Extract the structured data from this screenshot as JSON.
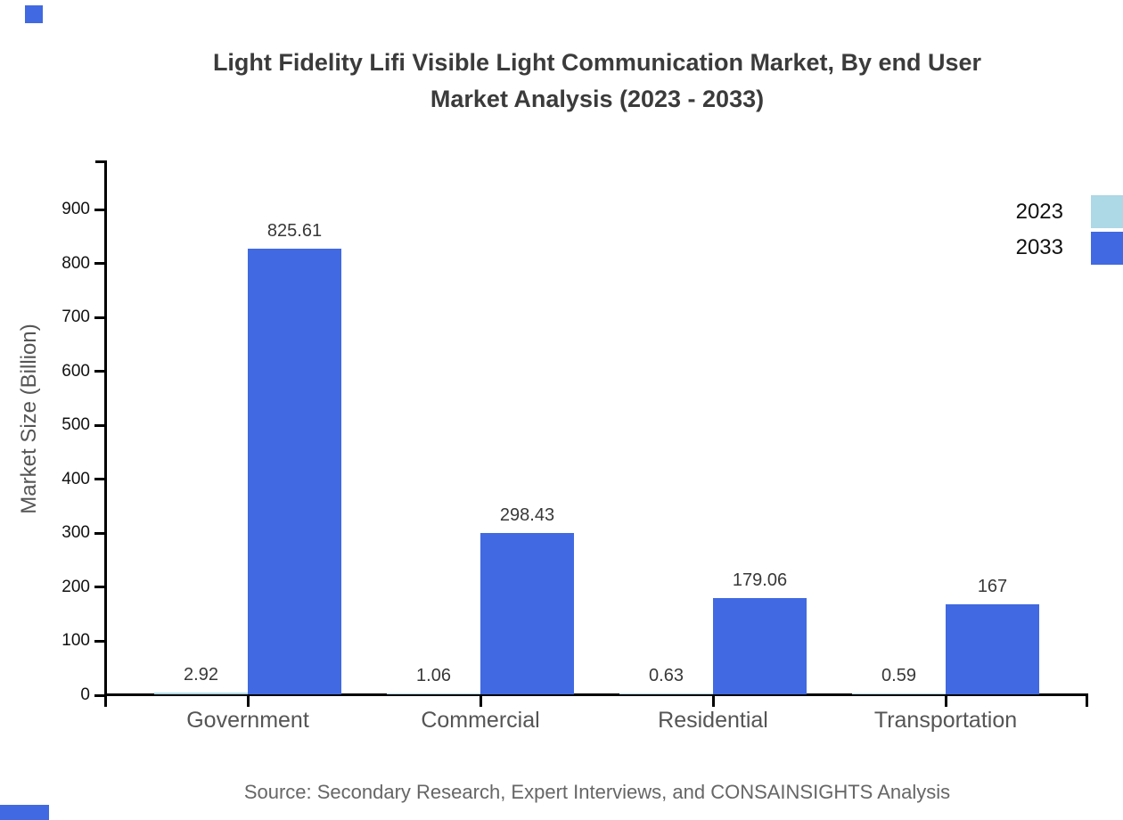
{
  "page": {
    "title_line1": "Light Fidelity Lifi Visible Light Communication Market, By end User",
    "title_line2": "Market Analysis (2023 - 2033)",
    "source": "Source: Secondary Research, Expert Interviews, and CONSAINSIGHTS Analysis"
  },
  "chart_data": {
    "type": "bar",
    "title": "Light Fidelity Lifi Visible Light Communication Market, By end User Market Analysis (2023 - 2033)",
    "xlabel": "",
    "ylabel": "Market Size (Billion)",
    "categories": [
      "Government",
      "Commercial",
      "Residential",
      "Transportation"
    ],
    "series": [
      {
        "name": "2023",
        "color": "#ADD8E6",
        "values": [
          2.92,
          1.06,
          0.63,
          0.59
        ],
        "labels": [
          "2.92",
          "1.06",
          "0.63",
          "0.59"
        ]
      },
      {
        "name": "2033",
        "color": "#4169E1",
        "values": [
          825.61,
          298.43,
          179.06,
          167
        ],
        "labels": [
          "825.61",
          "298.43",
          "179.06",
          "167"
        ]
      }
    ],
    "y_ticks": [
      0,
      100,
      200,
      300,
      400,
      500,
      600,
      700,
      800,
      900
    ],
    "ylim": [
      0,
      990
    ],
    "grid": false,
    "legend_position": "top-right"
  },
  "legend": {
    "items": [
      {
        "label": "2023",
        "color": "#ADD8E6"
      },
      {
        "label": "2033",
        "color": "#4169E1"
      }
    ]
  },
  "colors": {
    "accent": "#4169E1",
    "bar_2023": "#ADD8E6",
    "bar_2033": "#4169E1",
    "axis": "#000000",
    "title_text": "#3b3b3b",
    "category_text": "#555555",
    "source_text": "#666666"
  }
}
